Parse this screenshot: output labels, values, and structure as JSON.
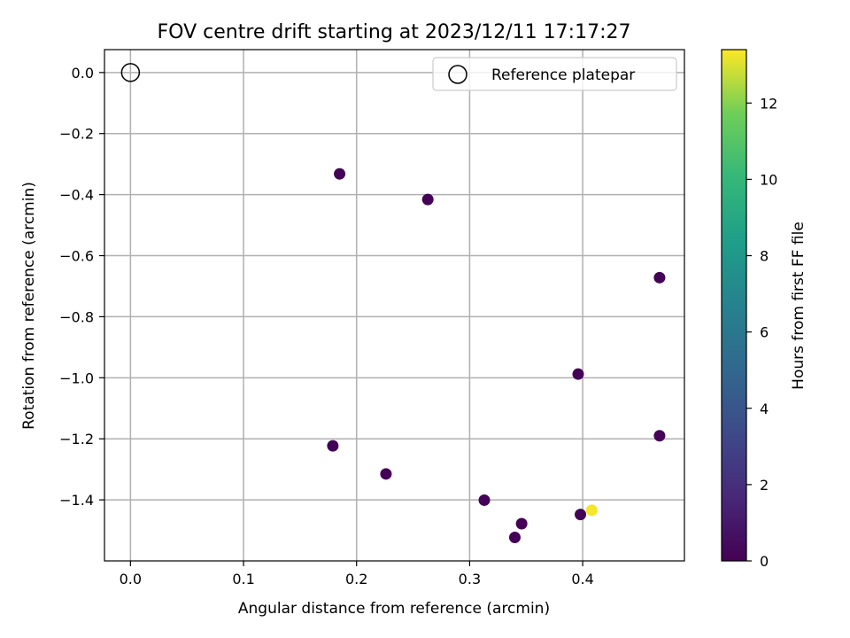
{
  "chart_data": {
    "type": "scatter",
    "title": "FOV centre drift starting at 2023/12/11 17:17:27",
    "xlabel": "Angular distance from reference (arcmin)",
    "ylabel": "Rotation from reference (arcmin)",
    "xlim": [
      -0.023,
      0.49
    ],
    "ylim": [
      -1.6,
      0.075
    ],
    "xticks": [
      "0.0",
      "0.1",
      "0.2",
      "0.3",
      "0.4"
    ],
    "yticks": [
      "0.0",
      "−0.2",
      "−0.4",
      "−0.6",
      "−0.8",
      "−1.0",
      "−1.2",
      "−1.4"
    ],
    "grid": true,
    "legend": {
      "position": "top-right",
      "entries": [
        "Reference platepar"
      ]
    },
    "reference_point": {
      "x": 0.0,
      "y": 0.0
    },
    "colorbar": {
      "label": "Hours from first FF file",
      "colormap": "viridis",
      "range": [
        0,
        13.4
      ],
      "ticks": [
        "0",
        "2",
        "4",
        "6",
        "8",
        "10",
        "12"
      ]
    },
    "points": [
      {
        "x": 0.185,
        "y": -0.332,
        "hours": 0.1
      },
      {
        "x": 0.263,
        "y": -0.416,
        "hours": 0.1
      },
      {
        "x": 0.468,
        "y": -0.672,
        "hours": 0.1
      },
      {
        "x": 0.396,
        "y": -0.988,
        "hours": 0.1
      },
      {
        "x": 0.468,
        "y": -1.19,
        "hours": 0.1
      },
      {
        "x": 0.179,
        "y": -1.223,
        "hours": 0.1
      },
      {
        "x": 0.226,
        "y": -1.315,
        "hours": 0.1
      },
      {
        "x": 0.313,
        "y": -1.401,
        "hours": 0.1
      },
      {
        "x": 0.346,
        "y": -1.478,
        "hours": 0.1
      },
      {
        "x": 0.34,
        "y": -1.523,
        "hours": 0.1
      },
      {
        "x": 0.398,
        "y": -1.448,
        "hours": 0.1
      },
      {
        "x": 0.408,
        "y": -1.434,
        "hours": 13.3
      }
    ]
  }
}
